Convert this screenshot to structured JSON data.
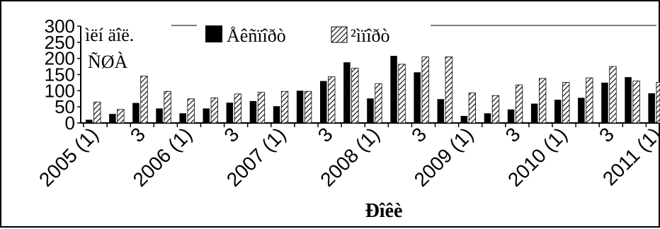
{
  "chart_data": {
    "type": "bar",
    "categories": [
      "2005 (1)",
      "",
      "3",
      "",
      "2006 (1)",
      "",
      "3",
      "",
      "2007 (1)",
      "",
      "3",
      "",
      "2008 (1)",
      "",
      "3",
      "",
      "2009 (1)",
      "",
      "3",
      "",
      "2010 (1)",
      "",
      "3",
      "",
      "2011 (1)",
      ""
    ],
    "series": [
      {
        "name": "Åêñïîðò",
        "color": "#000000",
        "fill": "solid",
        "values": [
          10,
          28,
          62,
          45,
          30,
          45,
          63,
          68,
          52,
          100,
          130,
          188,
          76,
          208,
          157,
          74,
          22,
          30,
          42,
          60,
          72,
          78,
          125,
          142,
          92,
          null
        ]
      },
      {
        "name": "²ìïîðò",
        "color": "#000000",
        "fill": "hatch",
        "values": [
          65,
          42,
          145,
          98,
          75,
          78,
          90,
          95,
          98,
          98,
          143,
          170,
          122,
          182,
          205,
          205,
          93,
          85,
          118,
          138,
          126,
          140,
          175,
          130,
          126,
          null
        ]
      }
    ],
    "ylabel_line1": "ìëí äîë.",
    "ylabel_line2": "ÑØÀ",
    "xlabel": "Ðîêè",
    "ylim": [
      0,
      300
    ],
    "yticks": [
      "0",
      "50",
      "100",
      "150",
      "200",
      "250",
      "300"
    ],
    "xticks": [
      "2005 (1)",
      "3",
      "2006 (1)",
      "3",
      "2007 (1)",
      "3",
      "2008 (1)",
      "3",
      "2009 (1)",
      "3",
      "2010 (1)",
      "3",
      "2011 (1)"
    ],
    "grid": false,
    "legend_placement": "top-center"
  }
}
